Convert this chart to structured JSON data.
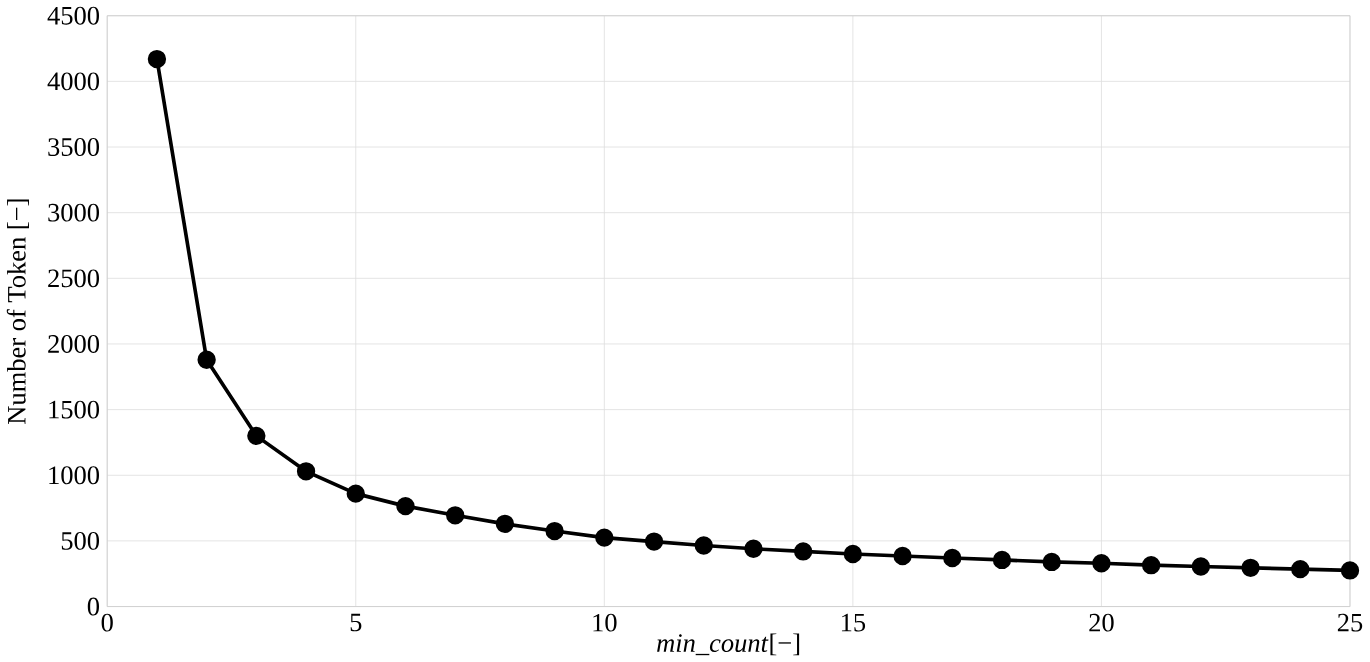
{
  "chart_data": {
    "type": "line",
    "xlabel": "*min_count*[−]",
    "ylabel": "Number of Token [−]",
    "x": [
      1,
      2,
      3,
      4,
      5,
      6,
      7,
      8,
      9,
      10,
      11,
      12,
      13,
      14,
      15,
      16,
      17,
      18,
      19,
      20,
      21,
      22,
      23,
      24,
      25
    ],
    "series": [
      {
        "color": "#000000",
        "values": [
          4170,
          1880,
          1300,
          1030,
          860,
          765,
          695,
          630,
          575,
          525,
          495,
          465,
          440,
          420,
          400,
          385,
          370,
          355,
          340,
          330,
          315,
          305,
          295,
          285,
          275
        ]
      }
    ],
    "xlim": [
      0,
      25
    ],
    "xticks": [
      0,
      5,
      10,
      15,
      20,
      25
    ],
    "ylim": [
      0,
      4500
    ],
    "yticks": [
      0,
      500,
      1000,
      1500,
      2000,
      2500,
      3000,
      3500,
      4000,
      4500
    ],
    "grid": true,
    "marker": "circle",
    "line_style": "solid"
  }
}
